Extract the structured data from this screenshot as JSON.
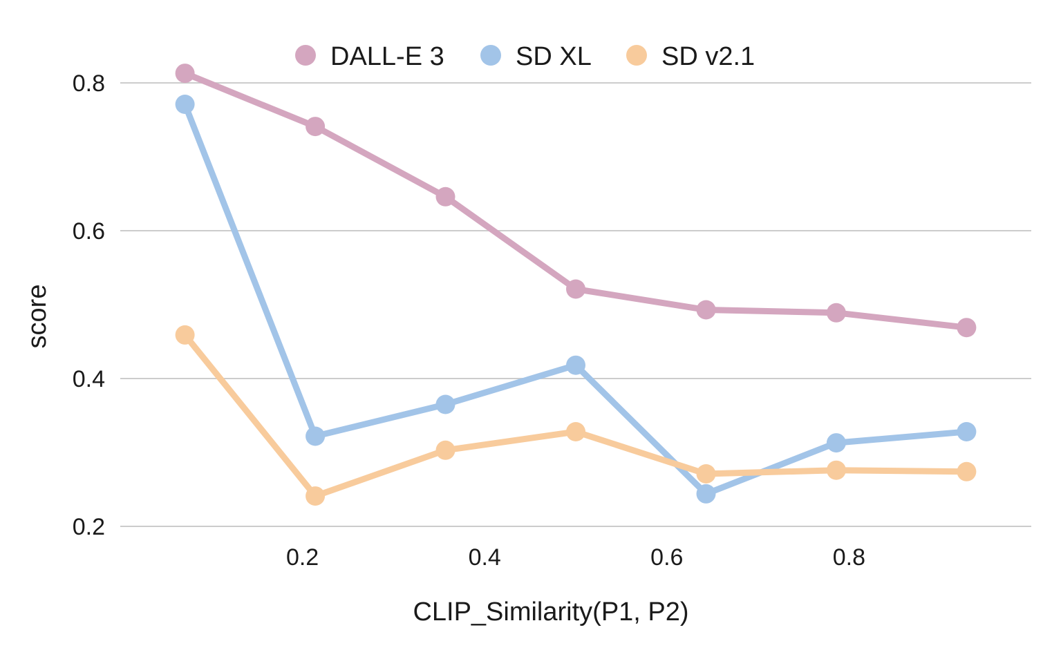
{
  "chart_data": {
    "type": "line",
    "title": "",
    "xlabel": "CLIP_Similarity(P1, P2)",
    "ylabel": "score",
    "x": [
      0.071,
      0.214,
      0.357,
      0.5,
      0.643,
      0.786,
      0.929
    ],
    "xlim": [
      0.0,
      1.0
    ],
    "ylim": [
      0.2,
      0.85
    ],
    "xticks": [
      0.2,
      0.4,
      0.6,
      0.8
    ],
    "xtick_labels": [
      "0.2",
      "0.4",
      "0.6",
      "0.8"
    ],
    "yticks": [
      0.2,
      0.4,
      0.6,
      0.8
    ],
    "ytick_labels": [
      "0.2",
      "0.4",
      "0.6",
      "0.8"
    ],
    "grid": "horizontal",
    "legend_position": "top-center",
    "series": [
      {
        "name": "DALL-E 3",
        "color": "#d4a6bf",
        "values": [
          0.813,
          0.741,
          0.646,
          0.521,
          0.493,
          0.489,
          0.469
        ]
      },
      {
        "name": "SD XL",
        "color": "#a2c4e8",
        "values": [
          0.771,
          0.322,
          0.365,
          0.418,
          0.244,
          0.313,
          0.328
        ]
      },
      {
        "name": "SD v2.1",
        "color": "#f8cb9c",
        "values": [
          0.459,
          0.241,
          0.303,
          0.328,
          0.271,
          0.276,
          0.274
        ]
      }
    ]
  }
}
